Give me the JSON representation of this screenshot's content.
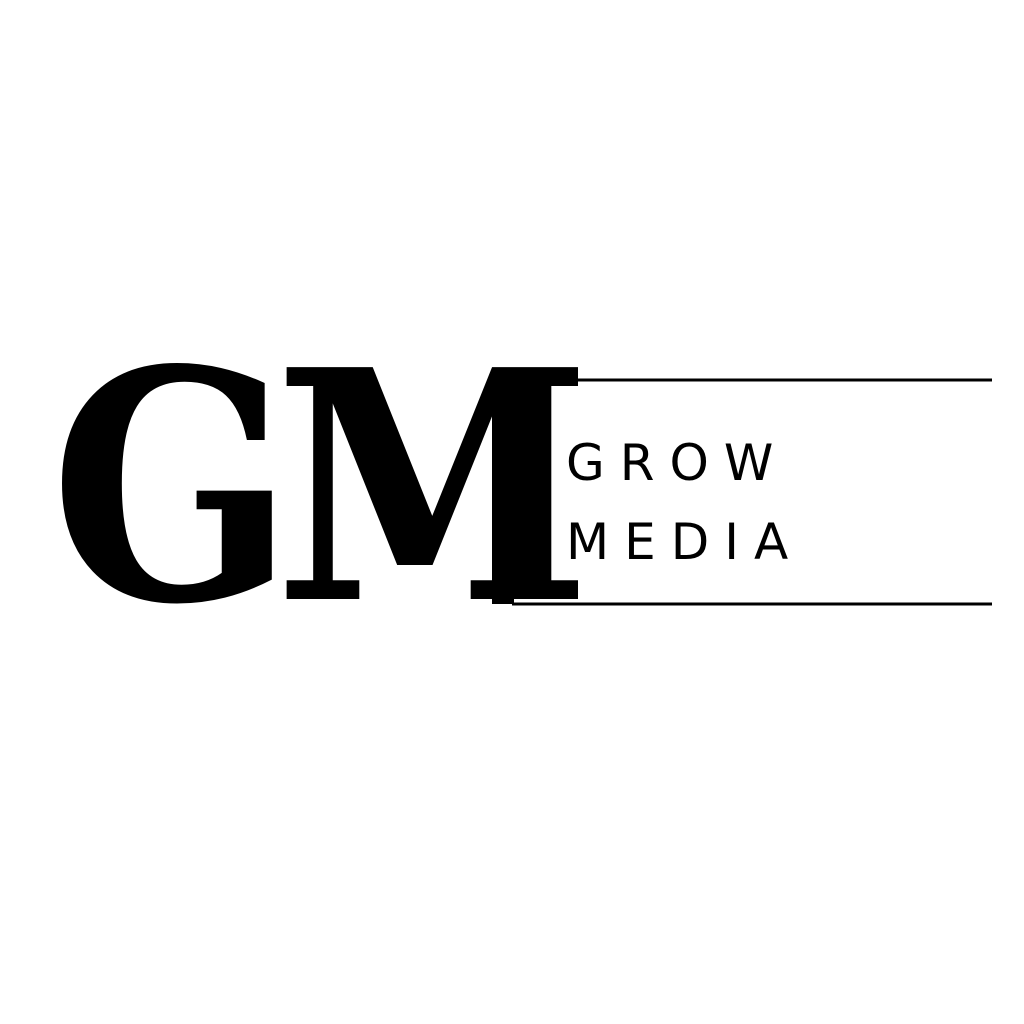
{
  "logo": {
    "monogram": "GM",
    "wordmark_line1": "GROW",
    "wordmark_line2": "MEDIA",
    "ink_color": "#000000",
    "background_color": "#ffffff"
  }
}
